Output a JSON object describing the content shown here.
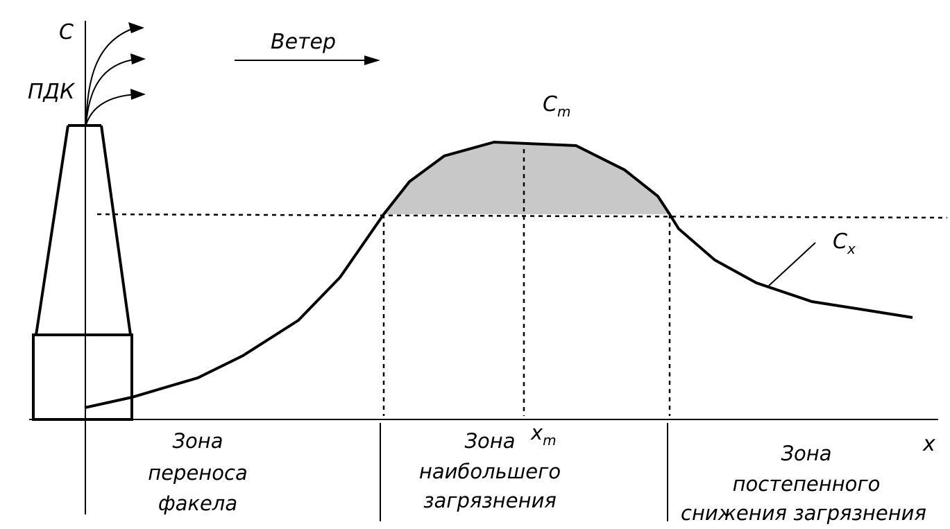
{
  "axes": {
    "y_label": "С",
    "x_label": "x",
    "pdk_label": "ПДК"
  },
  "wind": {
    "label": "Ветер"
  },
  "curve_labels": {
    "cm": "С",
    "cm_sub": "m",
    "cx": "С",
    "cx_sub": "x",
    "xm": "x",
    "xm_sub": "m"
  },
  "zones": [
    {
      "lines": [
        "Зона",
        "переноса",
        "факела"
      ]
    },
    {
      "lines": [
        "Зона",
        "наибольшего",
        "загрязнения"
      ]
    },
    {
      "lines": [
        "Зона",
        "постепенного",
        "снижения загрязнения"
      ]
    }
  ],
  "colors": {
    "line": "#000000",
    "shade": "#c8c8c8"
  }
}
